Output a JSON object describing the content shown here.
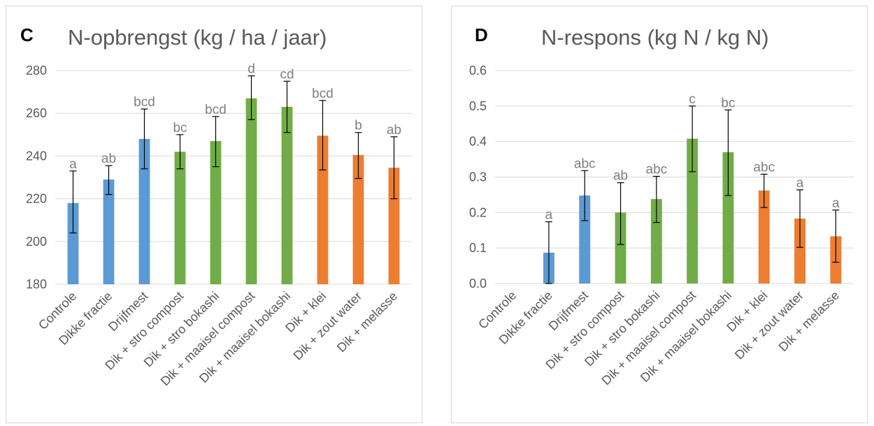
{
  "chart_data": [
    {
      "type": "bar",
      "panel_label": "C",
      "title": "N-opbrengst (kg / ha / jaar)",
      "xlabel": "",
      "ylabel": "",
      "ylim": [
        180,
        280
      ],
      "yticks": [
        180,
        200,
        220,
        240,
        260,
        280
      ],
      "grid": true,
      "categories": [
        "Controle",
        "Dikke fractie",
        "Drijfmest",
        "Dik + stro compost",
        "Dik + stro bokashi",
        "Dik + maaisel compost",
        "Dik + maaisel bokashi",
        "Dik + klei",
        "Dik + zout water",
        "Dik + melasse"
      ],
      "values": [
        218,
        229,
        248,
        242,
        247,
        267,
        263,
        249.5,
        240.5,
        234.5
      ],
      "err_low": [
        204,
        222,
        234,
        234,
        235,
        257,
        251,
        233.5,
        229.5,
        220
      ],
      "err_high": [
        233,
        235.5,
        262,
        250,
        258.5,
        277.5,
        275,
        266,
        251,
        249
      ],
      "significance": [
        "a",
        "ab",
        "bcd",
        "bc",
        "bcd",
        "d",
        "cd",
        "bcd",
        "b",
        "ab"
      ],
      "colors": [
        "#5b9bd5",
        "#5b9bd5",
        "#5b9bd5",
        "#70ad47",
        "#70ad47",
        "#70ad47",
        "#70ad47",
        "#ed7d31",
        "#ed7d31",
        "#ed7d31"
      ]
    },
    {
      "type": "bar",
      "panel_label": "D",
      "title": "N-respons (kg N / kg N)",
      "xlabel": "",
      "ylabel": "",
      "ylim": [
        0,
        0.6
      ],
      "yticks": [
        "0.0",
        "0.1",
        "0.2",
        "0.3",
        "0.4",
        "0.5",
        "0.6"
      ],
      "grid": true,
      "categories": [
        "Controle",
        "Dikke fractie",
        "Drijfmest",
        "Dik + stro compost",
        "Dik + stro bokashi",
        "Dik + maaisel compost",
        "Dik + maaisel bokashi",
        "Dik + klei",
        "Dik + zout water",
        "Dik + melasse"
      ],
      "values": [
        0,
        0.087,
        0.248,
        0.2,
        0.238,
        0.408,
        0.37,
        0.262,
        0.183,
        0.133
      ],
      "err_low": [
        null,
        0,
        0.177,
        0.11,
        0.172,
        0.315,
        0.248,
        0.214,
        0.102,
        0.06
      ],
      "err_high": [
        null,
        0.174,
        0.318,
        0.284,
        0.302,
        0.5,
        0.489,
        0.308,
        0.264,
        0.207
      ],
      "significance": [
        "",
        "a",
        "abc",
        "ab",
        "abc",
        "c",
        "bc",
        "abc",
        "a",
        "a"
      ],
      "colors": [
        "#5b9bd5",
        "#5b9bd5",
        "#5b9bd5",
        "#70ad47",
        "#70ad47",
        "#70ad47",
        "#70ad47",
        "#ed7d31",
        "#ed7d31",
        "#ed7d31"
      ]
    }
  ]
}
